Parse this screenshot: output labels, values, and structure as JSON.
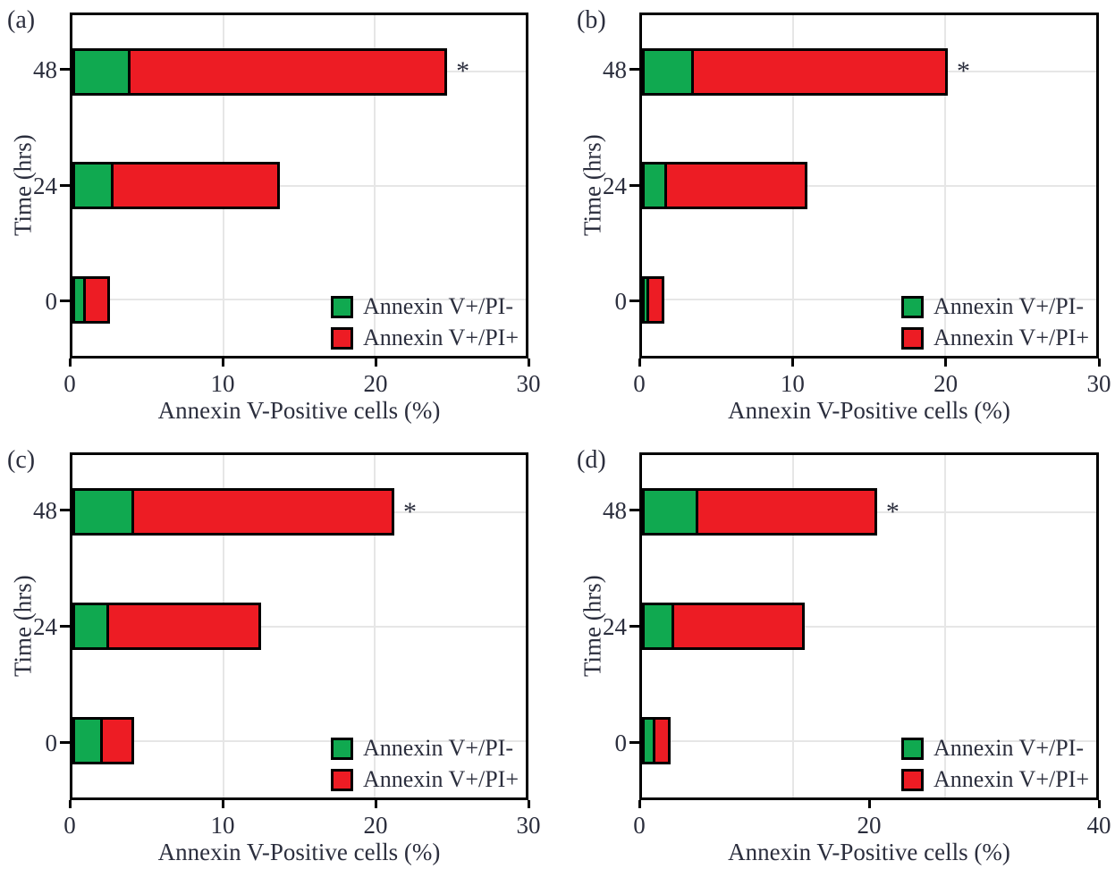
{
  "figure": {
    "background": "#ffffff",
    "text_color": "#2b2e3d",
    "grid_color": "#e6e6e6",
    "axis_color": "#000000",
    "colors": {
      "annexin_v_pos_pi_neg": "#10a950",
      "annexin_v_pos_pi_pos": "#ed1c24"
    },
    "legend_labels": [
      "Annexin V+/PI-",
      "Annexin V+/PI+"
    ],
    "significance_marker": "*"
  },
  "chart_data": [
    {
      "panel_id": "a",
      "panel_label": "(a)",
      "type": "bar",
      "orientation": "horizontal",
      "stacked": true,
      "xlabel": "Annexin V-Positive cells (%)",
      "ylabel": "Time (hrs)",
      "categories": [
        "48",
        "24",
        "0"
      ],
      "xlim": [
        0,
        30
      ],
      "xticks": [
        0,
        10,
        20,
        30
      ],
      "xtick_labels": [
        "0",
        "10",
        "20",
        "30"
      ],
      "series_names": [
        "Annexin V+/PI-",
        "Annexin V+/PI+"
      ],
      "bars": [
        {
          "category": "48",
          "annexin_v_pos_pi_neg": 3.7,
          "annexin_v_pos_pi_pos": 21.1,
          "total": 24.8,
          "significant": true
        },
        {
          "category": "24",
          "annexin_v_pos_pi_neg": 2.6,
          "annexin_v_pos_pi_pos": 11.1,
          "total": 13.7,
          "significant": false
        },
        {
          "category": "0",
          "annexin_v_pos_pi_neg": 0.8,
          "annexin_v_pos_pi_pos": 1.7,
          "total": 2.5,
          "significant": false
        }
      ]
    },
    {
      "panel_id": "b",
      "panel_label": "(b)",
      "type": "bar",
      "orientation": "horizontal",
      "stacked": true,
      "xlabel": "Annexin V-Positive cells (%)",
      "ylabel": "Time (hrs)",
      "categories": [
        "48",
        "24",
        "0"
      ],
      "xlim": [
        0,
        30
      ],
      "xticks": [
        0,
        10,
        20,
        30
      ],
      "xtick_labels": [
        "0",
        "10",
        "20",
        "30"
      ],
      "series_names": [
        "Annexin V+/PI-",
        "Annexin V+/PI+"
      ],
      "bars": [
        {
          "category": "48",
          "annexin_v_pos_pi_neg": 3.3,
          "annexin_v_pos_pi_pos": 16.9,
          "total": 20.2,
          "significant": true
        },
        {
          "category": "24",
          "annexin_v_pos_pi_neg": 1.5,
          "annexin_v_pos_pi_pos": 9.4,
          "total": 10.9,
          "significant": false
        },
        {
          "category": "0",
          "annexin_v_pos_pi_neg": 0.4,
          "annexin_v_pos_pi_pos": 1.1,
          "total": 1.5,
          "significant": false
        }
      ]
    },
    {
      "panel_id": "c",
      "panel_label": "(c)",
      "type": "bar",
      "orientation": "horizontal",
      "stacked": true,
      "xlabel": "Annexin V-Positive cells (%)",
      "ylabel": "Time (hrs)",
      "categories": [
        "48",
        "24",
        "0"
      ],
      "xlim": [
        0,
        30
      ],
      "xticks": [
        0,
        10,
        20,
        30
      ],
      "xtick_labels": [
        "0",
        "10",
        "20",
        "30"
      ],
      "series_names": [
        "Annexin V+/PI-",
        "Annexin V+/PI+"
      ],
      "bars": [
        {
          "category": "48",
          "annexin_v_pos_pi_neg": 4.0,
          "annexin_v_pos_pi_pos": 17.3,
          "total": 21.3,
          "significant": true
        },
        {
          "category": "24",
          "annexin_v_pos_pi_neg": 2.3,
          "annexin_v_pos_pi_pos": 10.2,
          "total": 12.5,
          "significant": false
        },
        {
          "category": "0",
          "annexin_v_pos_pi_neg": 2.0,
          "annexin_v_pos_pi_pos": 2.1,
          "total": 4.1,
          "significant": false
        }
      ]
    },
    {
      "panel_id": "d",
      "panel_label": "(d)",
      "type": "bar",
      "orientation": "horizontal",
      "stacked": true,
      "xlabel": "Annexin V-Positive cells (%)",
      "ylabel": "Time (hrs)",
      "categories": [
        "48",
        "24",
        "0"
      ],
      "xlim": [
        0,
        40
      ],
      "xticks": [
        0,
        20,
        40
      ],
      "xtick_labels": [
        "0",
        "20",
        "40"
      ],
      "series_names": [
        "Annexin V+/PI-",
        "Annexin V+/PI+"
      ],
      "bars": [
        {
          "category": "48",
          "annexin_v_pos_pi_neg": 4.8,
          "annexin_v_pos_pi_pos": 15.9,
          "total": 20.7,
          "significant": true
        },
        {
          "category": "24",
          "annexin_v_pos_pi_neg": 2.7,
          "annexin_v_pos_pi_pos": 11.6,
          "total": 14.3,
          "significant": false
        },
        {
          "category": "0",
          "annexin_v_pos_pi_neg": 1.2,
          "annexin_v_pos_pi_pos": 1.3,
          "total": 2.5,
          "significant": false
        }
      ]
    }
  ]
}
